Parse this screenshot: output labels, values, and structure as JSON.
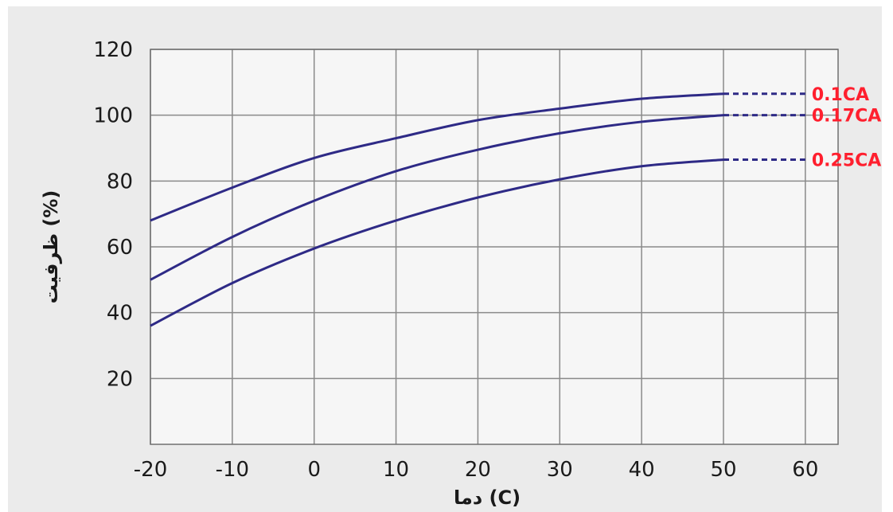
{
  "chart_data": {
    "type": "line",
    "xlabel": "دما (C)",
    "ylabel": "ظرفیت (%)",
    "xlim": [
      -20,
      64
    ],
    "ylim": [
      0,
      120
    ],
    "x_ticks": [
      -20,
      -10,
      0,
      10,
      20,
      30,
      40,
      50,
      60
    ],
    "y_ticks": [
      20,
      40,
      60,
      80,
      100,
      120
    ],
    "grid": true,
    "extrapolate_to": 60,
    "series": [
      {
        "name": "0.1CA",
        "color": "#2e2a86",
        "label_color": "#ff1f2e",
        "x": [
          -20,
          -10,
          0,
          10,
          20,
          30,
          40,
          50
        ],
        "y": [
          68,
          78,
          87,
          93,
          98.5,
          102,
          105,
          106.5
        ]
      },
      {
        "name": "0.17CA",
        "color": "#2e2a86",
        "label_color": "#ff1f2e",
        "x": [
          -20,
          -10,
          0,
          10,
          20,
          30,
          40,
          50
        ],
        "y": [
          50,
          63,
          74,
          83,
          89.5,
          94.5,
          98,
          100
        ]
      },
      {
        "name": "0.25CA",
        "color": "#2e2a86",
        "label_color": "#ff1f2e",
        "x": [
          -20,
          -10,
          0,
          10,
          20,
          30,
          40,
          50
        ],
        "y": [
          36,
          49,
          59.5,
          68,
          75,
          80.5,
          84.5,
          86.5
        ]
      }
    ]
  }
}
